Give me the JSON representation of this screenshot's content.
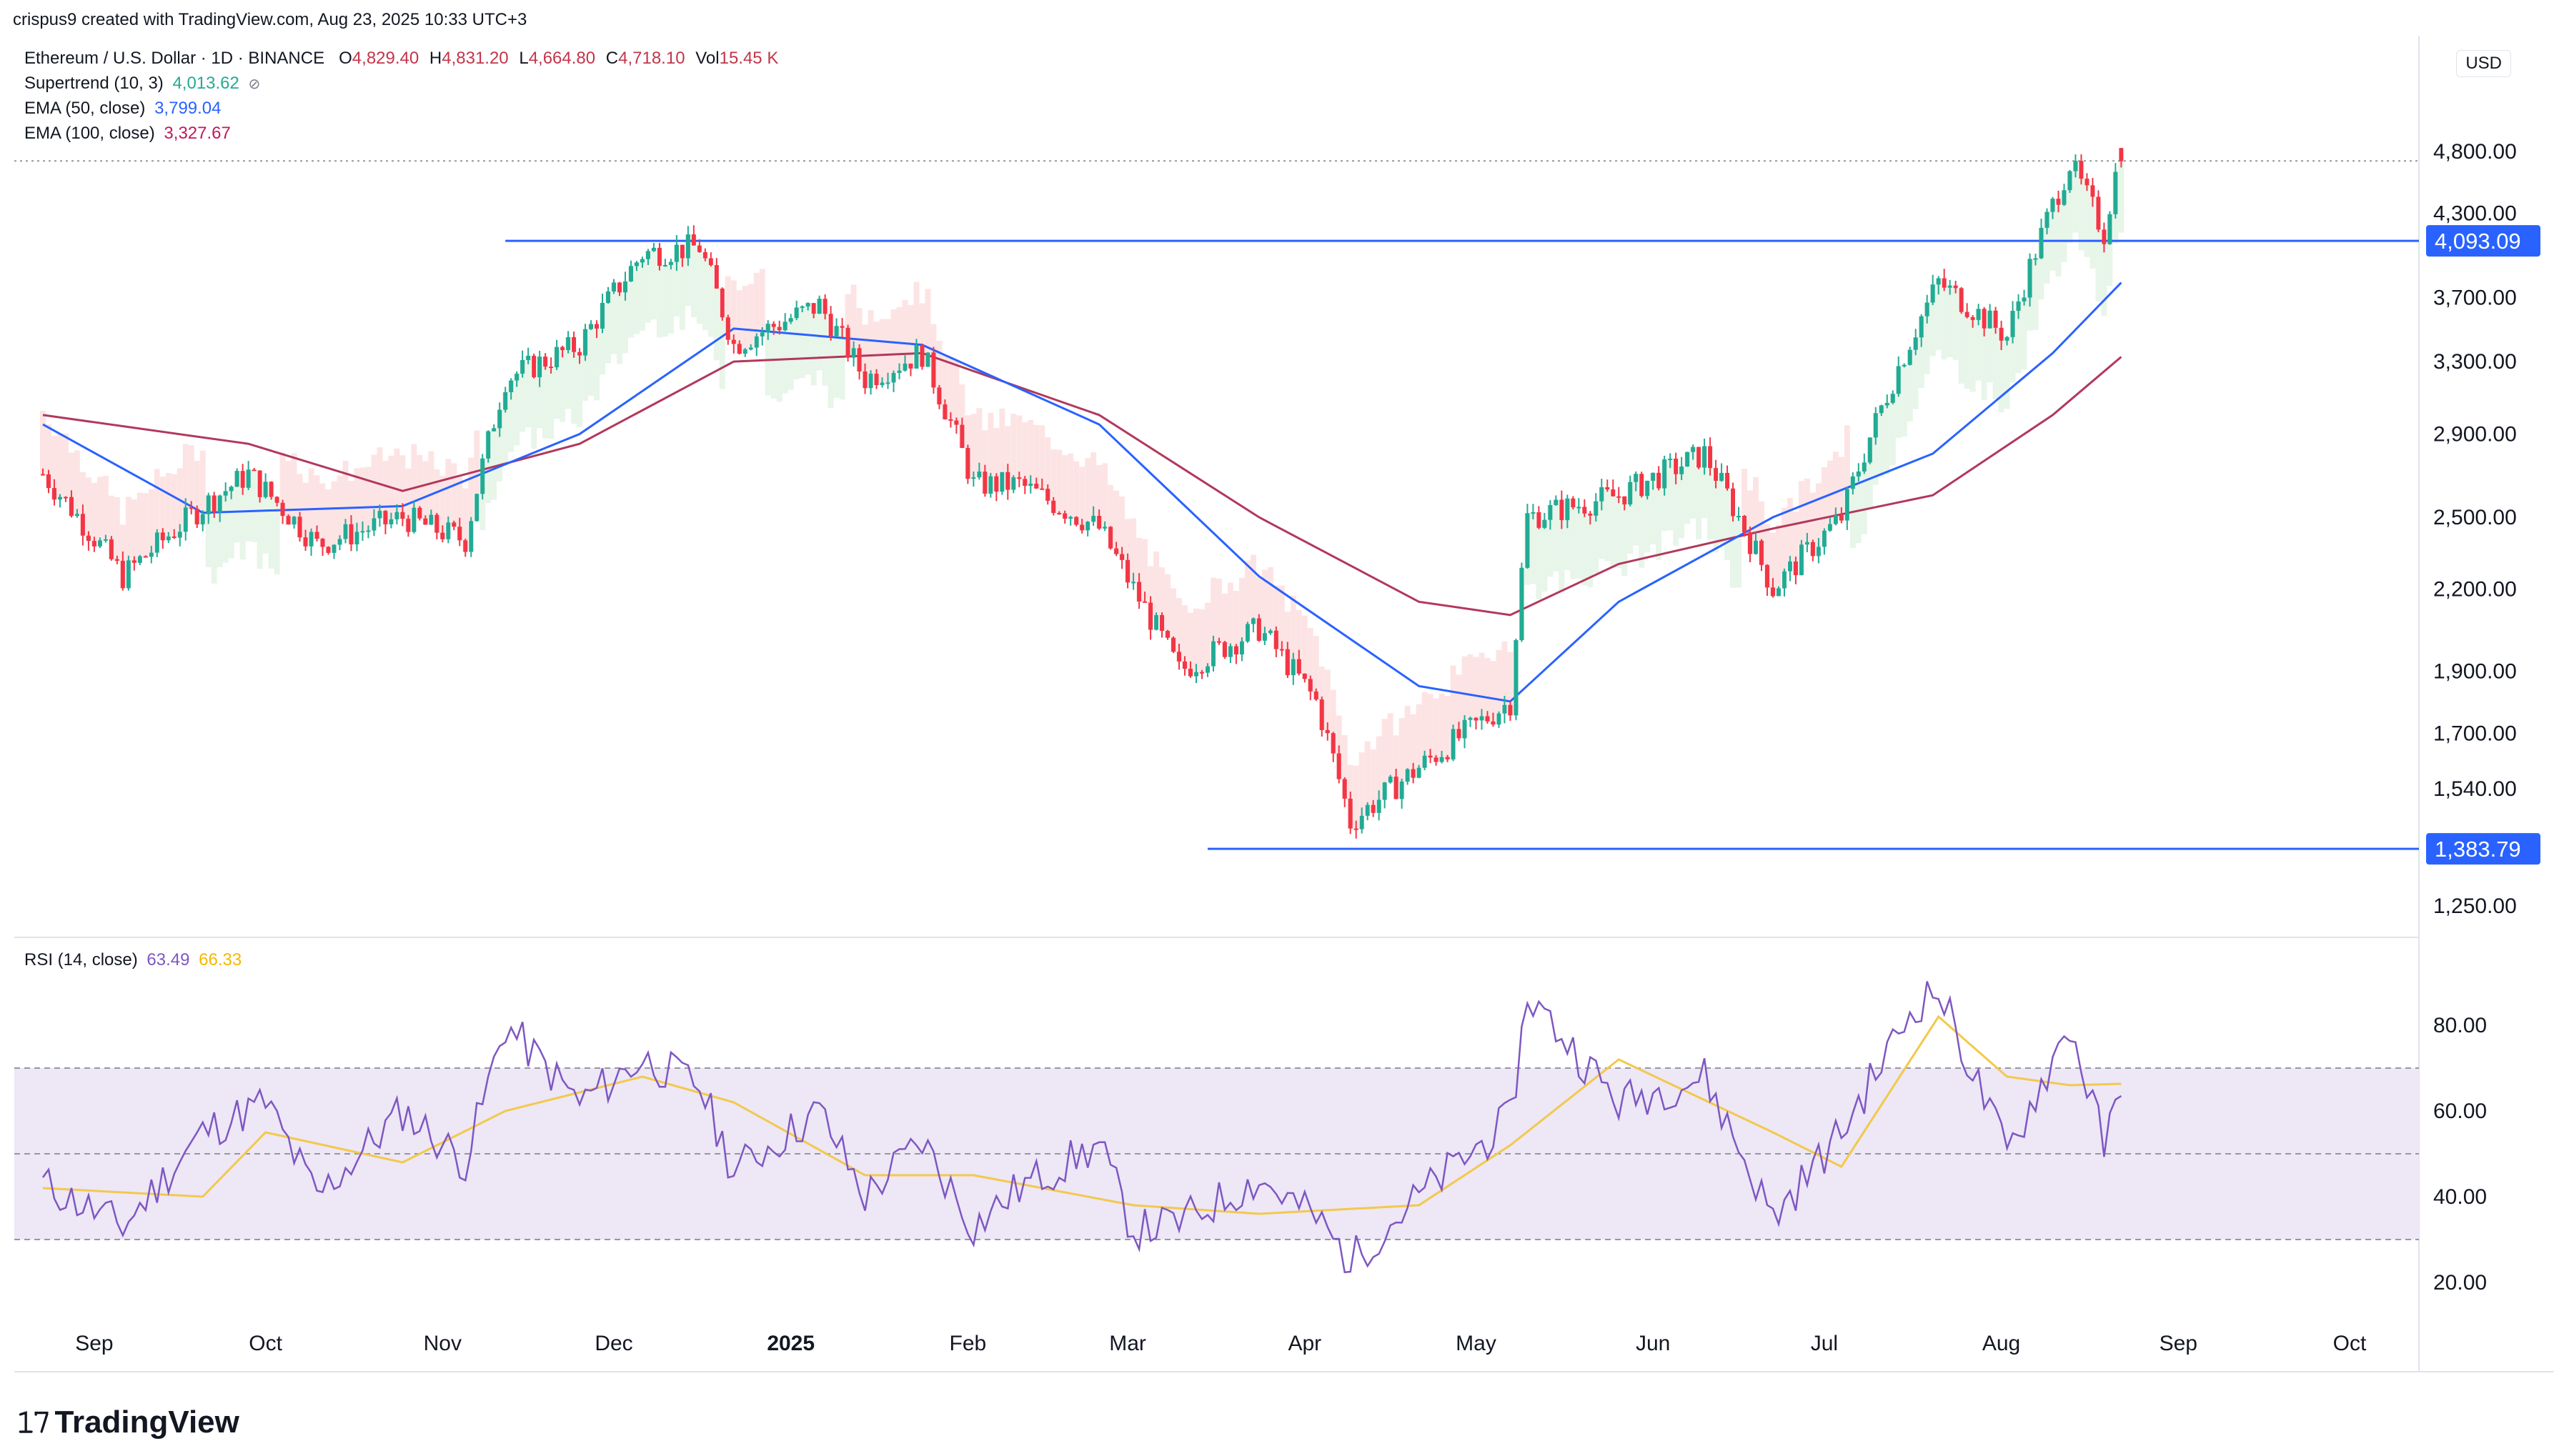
{
  "header": {
    "credit": "crispus9 created with TradingView.com, Aug 23, 2025 10:33 UTC+3"
  },
  "legend": {
    "symbol": "Ethereum / U.S. Dollar · 1D · BINANCE",
    "ohlc": {
      "o_label": "O",
      "o": "4,829.40",
      "h_label": "H",
      "h": "4,831.20",
      "l_label": "L",
      "l": "4,664.80",
      "c_label": "C",
      "c": "4,718.10",
      "vol_label": "Vol",
      "vol": "15.45 K"
    },
    "supertrend": {
      "label": "Supertrend (10, 3)",
      "value": "4,013.62",
      "color": "#22ab94"
    },
    "ema50": {
      "label": "EMA (50, close)",
      "value": "3,799.04",
      "color": "#2962ff"
    },
    "ema100": {
      "label": "EMA (100, close)",
      "value": "3,327.67",
      "color": "#c2185b"
    },
    "rsi": {
      "label": "RSI (14, close)",
      "value": "63.49",
      "ma": "66.33",
      "color": "#7e57c2",
      "ma_color": "#f5b700"
    }
  },
  "currency": "USD",
  "brand": "TradingView",
  "colors": {
    "up": "#22ab94",
    "down": "#f23645",
    "ema50": "#2962ff",
    "ema100": "#b2385c",
    "level": "#2962ff",
    "rsi": "#7e57c2",
    "rsi_ma": "#f2c94c",
    "rsi_band": "#ede7f6",
    "st_up_fill": "#e8f5e9",
    "st_dn_fill": "#fde4e4"
  },
  "chart_data": [
    {
      "type": "candlestick",
      "title": "Ethereum / U.S. Dollar · 1D · BINANCE",
      "y_scale": "log",
      "ylim": [
        1200,
        5000
      ],
      "y_ticks": [
        "4,800.00",
        "4,300.00",
        "3,700.00",
        "3,300.00",
        "2,900.00",
        "2,500.00",
        "2,200.00",
        "1,900.00",
        "1,700.00",
        "1,540.00",
        "1,250.00"
      ],
      "x_ticks": [
        "Sep",
        "Oct",
        "Nov",
        "Dec",
        "2025",
        "Feb",
        "Mar",
        "Apr",
        "May",
        "Jun",
        "Jul",
        "Aug",
        "Sep",
        "Oct"
      ],
      "levels": [
        {
          "label": "4,093.09",
          "value": 4093.09,
          "from": "2024-11-12"
        },
        {
          "label": "1,383.79",
          "value": 1383.79,
          "from": "2025-03-15"
        }
      ],
      "last_price_line": 4718.1,
      "series": [
        {
          "name": "ETHUSD",
          "points": [
            {
              "date": "2024-08-23",
              "close": 2700
            },
            {
              "date": "2024-09-06",
              "close": 2250
            },
            {
              "date": "2024-09-20",
              "close": 2550
            },
            {
              "date": "2024-09-28",
              "close": 2700
            },
            {
              "date": "2024-10-10",
              "close": 2380
            },
            {
              "date": "2024-10-25",
              "close": 2500
            },
            {
              "date": "2024-11-05",
              "close": 2400
            },
            {
              "date": "2024-11-12",
              "close": 3200
            },
            {
              "date": "2024-11-25",
              "close": 3400
            },
            {
              "date": "2024-12-06",
              "close": 4000
            },
            {
              "date": "2024-12-16",
              "close": 4050
            },
            {
              "date": "2024-12-22",
              "close": 3400
            },
            {
              "date": "2025-01-06",
              "close": 3650
            },
            {
              "date": "2025-01-14",
              "close": 3200
            },
            {
              "date": "2025-01-24",
              "close": 3350
            },
            {
              "date": "2025-02-02",
              "close": 2650
            },
            {
              "date": "2025-02-10",
              "close": 2650
            },
            {
              "date": "2025-02-24",
              "close": 2450
            },
            {
              "date": "2025-03-02",
              "close": 2200
            },
            {
              "date": "2025-03-10",
              "close": 1900
            },
            {
              "date": "2025-03-24",
              "close": 2050
            },
            {
              "date": "2025-04-03",
              "close": 1800
            },
            {
              "date": "2025-04-09",
              "close": 1450
            },
            {
              "date": "2025-04-21",
              "close": 1600
            },
            {
              "date": "2025-05-07",
              "close": 1800
            },
            {
              "date": "2025-05-10",
              "close": 2500
            },
            {
              "date": "2025-05-26",
              "close": 2600
            },
            {
              "date": "2025-06-10",
              "close": 2800
            },
            {
              "date": "2025-06-22",
              "close": 2200
            },
            {
              "date": "2025-07-04",
              "close": 2500
            },
            {
              "date": "2025-07-17",
              "close": 3500
            },
            {
              "date": "2025-07-21",
              "close": 3800
            },
            {
              "date": "2025-08-02",
              "close": 3450
            },
            {
              "date": "2025-08-13",
              "close": 4700
            },
            {
              "date": "2025-08-19",
              "close": 4150
            },
            {
              "date": "2025-08-22",
              "close": 4831
            }
          ]
        },
        {
          "name": "EMA (50, close)",
          "points": [
            {
              "date": "2024-08-23",
              "value": 2950
            },
            {
              "date": "2024-09-20",
              "value": 2520
            },
            {
              "date": "2024-10-25",
              "value": 2550
            },
            {
              "date": "2024-11-25",
              "value": 2900
            },
            {
              "date": "2024-12-22",
              "value": 3500
            },
            {
              "date": "2025-01-24",
              "value": 3400
            },
            {
              "date": "2025-02-24",
              "value": 2950
            },
            {
              "date": "2025-03-24",
              "value": 2250
            },
            {
              "date": "2025-04-21",
              "value": 1850
            },
            {
              "date": "2025-05-07",
              "value": 1800
            },
            {
              "date": "2025-05-26",
              "value": 2150
            },
            {
              "date": "2025-06-22",
              "value": 2500
            },
            {
              "date": "2025-07-20",
              "value": 2800
            },
            {
              "date": "2025-08-10",
              "value": 3350
            },
            {
              "date": "2025-08-22",
              "value": 3799.04
            }
          ]
        },
        {
          "name": "EMA (100, close)",
          "points": [
            {
              "date": "2024-08-23",
              "value": 3000
            },
            {
              "date": "2024-09-28",
              "value": 2850
            },
            {
              "date": "2024-10-25",
              "value": 2620
            },
            {
              "date": "2024-11-25",
              "value": 2850
            },
            {
              "date": "2024-12-22",
              "value": 3300
            },
            {
              "date": "2025-01-24",
              "value": 3350
            },
            {
              "date": "2025-02-24",
              "value": 3000
            },
            {
              "date": "2025-03-24",
              "value": 2500
            },
            {
              "date": "2025-04-21",
              "value": 2150
            },
            {
              "date": "2025-05-07",
              "value": 2100
            },
            {
              "date": "2025-05-26",
              "value": 2300
            },
            {
              "date": "2025-06-22",
              "value": 2450
            },
            {
              "date": "2025-07-20",
              "value": 2600
            },
            {
              "date": "2025-08-10",
              "value": 3000
            },
            {
              "date": "2025-08-22",
              "value": 3327.67
            }
          ]
        }
      ]
    },
    {
      "type": "line",
      "title": "RSI (14, close)",
      "ylim": [
        15,
        95
      ],
      "y_ticks": [
        "80.00",
        "60.00",
        "40.00",
        "20.00"
      ],
      "bands": {
        "upper": 70,
        "middle": 50,
        "lower": 30
      },
      "series": [
        {
          "name": "RSI",
          "points": [
            {
              "date": "2024-08-23",
              "value": 43
            },
            {
              "date": "2024-09-06",
              "value": 33
            },
            {
              "date": "2024-09-20",
              "value": 55
            },
            {
              "date": "2024-10-01",
              "value": 62
            },
            {
              "date": "2024-10-10",
              "value": 40
            },
            {
              "date": "2024-10-25",
              "value": 60
            },
            {
              "date": "2024-11-05",
              "value": 48
            },
            {
              "date": "2024-11-12",
              "value": 80
            },
            {
              "date": "2024-11-25",
              "value": 62
            },
            {
              "date": "2024-12-06",
              "value": 72
            },
            {
              "date": "2024-12-16",
              "value": 66
            },
            {
              "date": "2024-12-22",
              "value": 46
            },
            {
              "date": "2025-01-06",
              "value": 60
            },
            {
              "date": "2025-01-14",
              "value": 40
            },
            {
              "date": "2025-01-24",
              "value": 53
            },
            {
              "date": "2025-02-02",
              "value": 33
            },
            {
              "date": "2025-02-10",
              "value": 42
            },
            {
              "date": "2025-02-24",
              "value": 52
            },
            {
              "date": "2025-03-02",
              "value": 32
            },
            {
              "date": "2025-03-10",
              "value": 34
            },
            {
              "date": "2025-03-24",
              "value": 44
            },
            {
              "date": "2025-04-03",
              "value": 35
            },
            {
              "date": "2025-04-09",
              "value": 25
            },
            {
              "date": "2025-04-21",
              "value": 40
            },
            {
              "date": "2025-05-07",
              "value": 58
            },
            {
              "date": "2025-05-10",
              "value": 87
            },
            {
              "date": "2025-05-26",
              "value": 62
            },
            {
              "date": "2025-06-10",
              "value": 68
            },
            {
              "date": "2025-06-22",
              "value": 35
            },
            {
              "date": "2025-07-04",
              "value": 55
            },
            {
              "date": "2025-07-17",
              "value": 85
            },
            {
              "date": "2025-07-21",
              "value": 88
            },
            {
              "date": "2025-08-02",
              "value": 50
            },
            {
              "date": "2025-08-13",
              "value": 80
            },
            {
              "date": "2025-08-19",
              "value": 52
            },
            {
              "date": "2025-08-22",
              "value": 63.49
            }
          ]
        },
        {
          "name": "RSI MA",
          "points": [
            {
              "date": "2024-08-23",
              "value": 42
            },
            {
              "date": "2024-09-20",
              "value": 40
            },
            {
              "date": "2024-10-01",
              "value": 55
            },
            {
              "date": "2024-10-25",
              "value": 48
            },
            {
              "date": "2024-11-12",
              "value": 60
            },
            {
              "date": "2024-12-06",
              "value": 68
            },
            {
              "date": "2024-12-22",
              "value": 62
            },
            {
              "date": "2025-01-14",
              "value": 45
            },
            {
              "date": "2025-02-02",
              "value": 45
            },
            {
              "date": "2025-03-02",
              "value": 38
            },
            {
              "date": "2025-03-24",
              "value": 36
            },
            {
              "date": "2025-04-21",
              "value": 38
            },
            {
              "date": "2025-05-07",
              "value": 52
            },
            {
              "date": "2025-05-26",
              "value": 72
            },
            {
              "date": "2025-06-22",
              "value": 55
            },
            {
              "date": "2025-07-04",
              "value": 47
            },
            {
              "date": "2025-07-21",
              "value": 82
            },
            {
              "date": "2025-08-02",
              "value": 68
            },
            {
              "date": "2025-08-13",
              "value": 66
            },
            {
              "date": "2025-08-22",
              "value": 66.33
            }
          ]
        }
      ]
    }
  ]
}
